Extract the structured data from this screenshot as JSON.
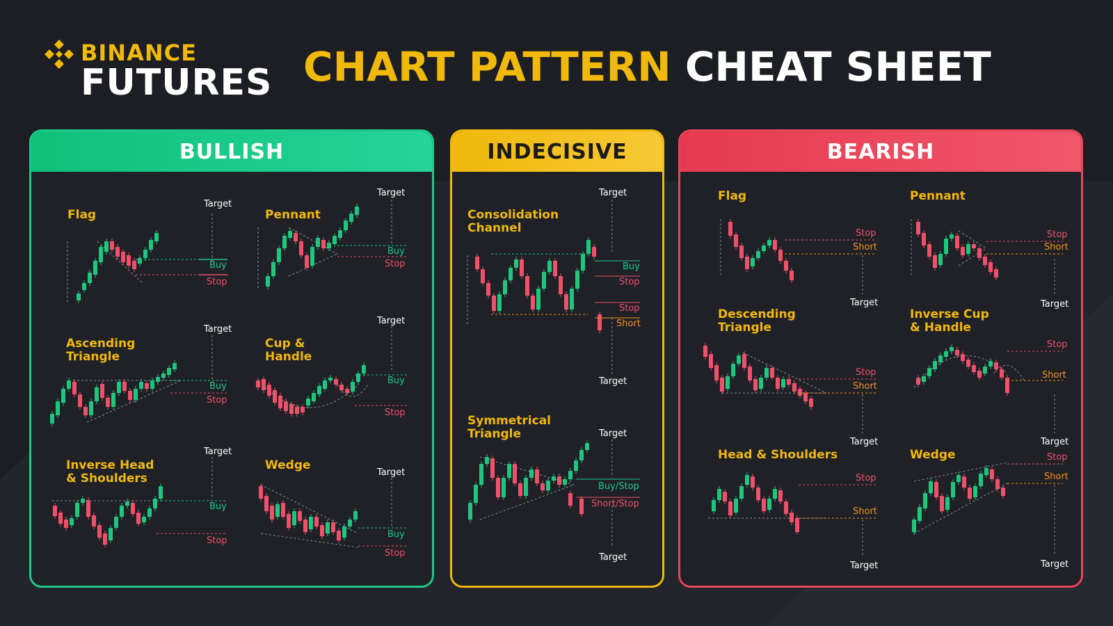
{
  "header": {
    "brand_top": "BINANCE",
    "brand_bottom": "FUTURES",
    "title_highlight": "CHART PATTERN",
    "title_rest": "CHEAT SHEET"
  },
  "colors": {
    "background": "#1c1e24",
    "brand_yellow": "#f0b90b",
    "bullish_green": "#1ec98a",
    "bearish_red": "#e8455a",
    "candle_up": "#1fc67e",
    "candle_down": "#f0506a",
    "short_orange": "#f7931a",
    "guide_line": "#8a8f99"
  },
  "panels": [
    {
      "category": "BULLISH",
      "patterns": [
        {
          "name": "Flag",
          "labels": [
            "Target",
            "Buy",
            "Stop"
          ]
        },
        {
          "name": "Pennant",
          "labels": [
            "Target",
            "Buy",
            "Stop"
          ]
        },
        {
          "name": "Ascending Triangle",
          "labels": [
            "Target",
            "Buy",
            "Stop"
          ]
        },
        {
          "name": "Cup & Handle",
          "labels": [
            "Target",
            "Buy",
            "Stop"
          ]
        },
        {
          "name": "Inverse Head & Shoulders",
          "labels": [
            "Target",
            "Buy",
            "Stop"
          ]
        },
        {
          "name": "Wedge",
          "labels": [
            "Target",
            "Buy",
            "Stop"
          ]
        }
      ]
    },
    {
      "category": "INDECISIVE",
      "patterns": [
        {
          "name": "Consolidation Channel",
          "labels": [
            "Target",
            "Buy",
            "Stop",
            "Stop",
            "Short",
            "Target"
          ]
        },
        {
          "name": "Symmetrical Triangle",
          "labels": [
            "Target",
            "Buy/Stop",
            "Short/Stop",
            "Target"
          ]
        }
      ]
    },
    {
      "category": "BEARISH",
      "patterns": [
        {
          "name": "Flag",
          "labels": [
            "Stop",
            "Short",
            "Target"
          ]
        },
        {
          "name": "Pennant",
          "labels": [
            "Stop",
            "Short",
            "Target"
          ]
        },
        {
          "name": "Descending Triangle",
          "labels": [
            "Stop",
            "Short",
            "Target"
          ]
        },
        {
          "name": "Inverse Cup & Handle",
          "labels": [
            "Stop",
            "Short",
            "Target"
          ]
        },
        {
          "name": "Head & Shoulders",
          "labels": [
            "Stop",
            "Short",
            "Target"
          ]
        },
        {
          "name": "Wedge",
          "labels": [
            "Stop",
            "Short",
            "Target"
          ]
        }
      ]
    }
  ]
}
